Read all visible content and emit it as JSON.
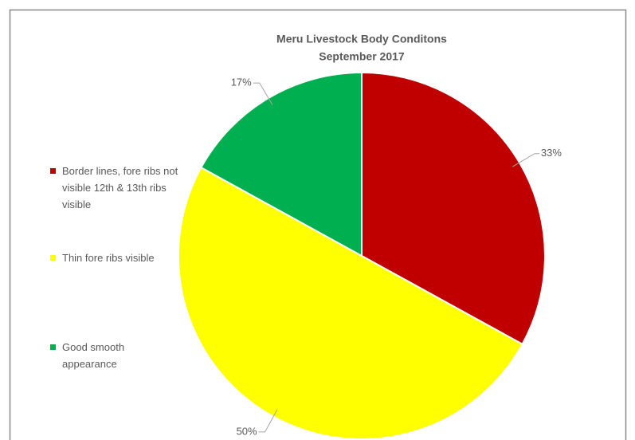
{
  "chart_data": {
    "type": "pie",
    "title": "Meru Livestock Body Conditons",
    "subtitle": "September 2017",
    "categories": [
      "Border lines, fore ribs not visible 12th & 13th ribs visible",
      "Thin fore ribs visible",
      "Good smooth appearance"
    ],
    "values": [
      33,
      50,
      17
    ],
    "value_labels": [
      "33%",
      "50%",
      "17%"
    ],
    "colors": [
      "#c00000",
      "#ffff00",
      "#00b050"
    ],
    "legend": "left"
  }
}
